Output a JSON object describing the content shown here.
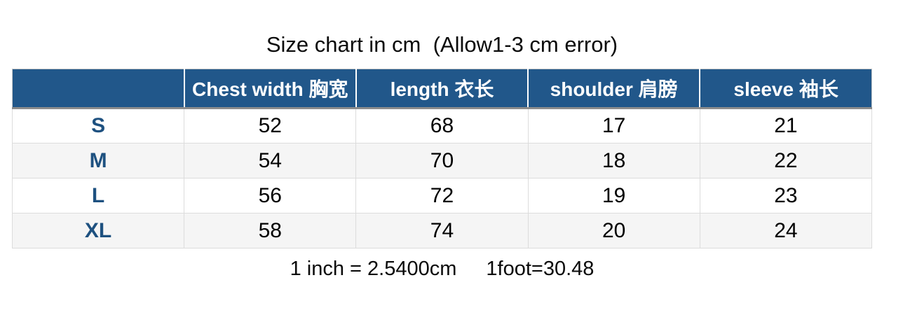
{
  "title": "Size chart in cm  (Allow1-3 cm error)",
  "table": {
    "columns": [
      "",
      "Chest width 胸宽",
      "length 衣长",
      "shoulder 肩膀",
      "sleeve 袖长"
    ],
    "rows": [
      {
        "size": "S",
        "chest": "52",
        "length": "68",
        "shoulder": "17",
        "sleeve": "21"
      },
      {
        "size": "M",
        "chest": "54",
        "length": "70",
        "shoulder": "18",
        "sleeve": "22"
      },
      {
        "size": "L",
        "chest": "56",
        "length": "72",
        "shoulder": "19",
        "sleeve": "23"
      },
      {
        "size": "XL",
        "chest": "58",
        "length": "74",
        "shoulder": "20",
        "sleeve": "24"
      }
    ]
  },
  "footnote": {
    "inch": "1 inch = 2.5400cm",
    "foot": "1foot=30.48"
  },
  "colors": {
    "header_bg": "#21578A",
    "header_text": "#FFFFFF",
    "header_divider": "#8C8C8C",
    "size_label": "#1E5180",
    "stripe": "#F5F5F5",
    "grid_line": "#DCDCDC"
  },
  "chart_data": {
    "type": "table",
    "title": "Size chart in cm  (Allow1-3 cm error)",
    "columns": [
      "",
      "Chest width 胸宽",
      "length 衣长",
      "shoulder 肩膀",
      "sleeve 袖长"
    ],
    "rows": [
      [
        "S",
        52,
        68,
        17,
        21
      ],
      [
        "M",
        54,
        70,
        18,
        22
      ],
      [
        "L",
        56,
        72,
        19,
        23
      ],
      [
        "XL",
        58,
        74,
        20,
        24
      ]
    ],
    "notes": [
      "1 inch = 2.5400cm",
      "1foot=30.48"
    ],
    "layout_hints": {
      "header_background": "#21578A",
      "zebra_striping": true,
      "grid": true,
      "units": "cm"
    }
  }
}
